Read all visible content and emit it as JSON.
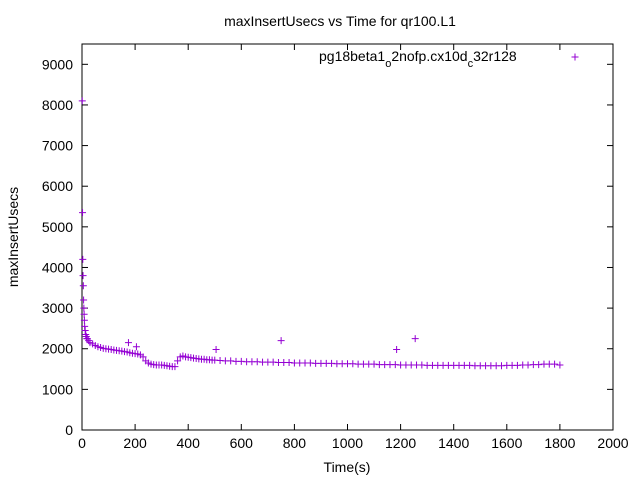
{
  "chart_data": {
    "type": "scatter",
    "title": "maxInsertUsecs vs Time for qr100.L1",
    "xlabel": "Time(s)",
    "ylabel": "maxInsertUsecs",
    "xlim": [
      0,
      2000
    ],
    "ylim": [
      0,
      9500
    ],
    "xticks": [
      "0",
      "200",
      "400",
      "600",
      "800",
      "1000",
      "1200",
      "1400",
      "1600",
      "1800",
      "2000"
    ],
    "yticks": [
      "0",
      "1000",
      "2000",
      "3000",
      "4000",
      "5000",
      "6000",
      "7000",
      "8000",
      "9000"
    ],
    "grid": false,
    "legend_position": "top-right",
    "marker": "+",
    "series": [
      {
        "name_parts": [
          "pg18beta1",
          "o",
          "2nofp.cx10d",
          "c",
          "32r128"
        ],
        "color": "#9400d3",
        "points": [
          [
            1,
            8100
          ],
          [
            2,
            5350
          ],
          [
            3,
            4200
          ],
          [
            4,
            3800
          ],
          [
            5,
            3550
          ],
          [
            6,
            3200
          ],
          [
            7,
            3000
          ],
          [
            8,
            2850
          ],
          [
            9,
            2700
          ],
          [
            10,
            2550
          ],
          [
            12,
            2450
          ],
          [
            14,
            2350
          ],
          [
            16,
            2300
          ],
          [
            18,
            2250
          ],
          [
            20,
            2250
          ],
          [
            25,
            2200
          ],
          [
            30,
            2150
          ],
          [
            40,
            2120
          ],
          [
            50,
            2080
          ],
          [
            60,
            2050
          ],
          [
            70,
            2030
          ],
          [
            80,
            2010
          ],
          [
            90,
            2000
          ],
          [
            100,
            1990
          ],
          [
            110,
            1980
          ],
          [
            120,
            1970
          ],
          [
            130,
            1960
          ],
          [
            140,
            1950
          ],
          [
            150,
            1940
          ],
          [
            160,
            1930
          ],
          [
            170,
            1920
          ],
          [
            175,
            2150
          ],
          [
            180,
            1900
          ],
          [
            190,
            1890
          ],
          [
            200,
            1880
          ],
          [
            205,
            2050
          ],
          [
            210,
            1870
          ],
          [
            220,
            1850
          ],
          [
            230,
            1800
          ],
          [
            240,
            1700
          ],
          [
            250,
            1650
          ],
          [
            260,
            1620
          ],
          [
            270,
            1610
          ],
          [
            280,
            1600
          ],
          [
            290,
            1600
          ],
          [
            300,
            1600
          ],
          [
            310,
            1590
          ],
          [
            320,
            1580
          ],
          [
            330,
            1570
          ],
          [
            340,
            1560
          ],
          [
            350,
            1560
          ],
          [
            360,
            1700
          ],
          [
            370,
            1800
          ],
          [
            380,
            1820
          ],
          [
            390,
            1800
          ],
          [
            400,
            1790
          ],
          [
            410,
            1780
          ],
          [
            420,
            1770
          ],
          [
            430,
            1760
          ],
          [
            440,
            1750
          ],
          [
            450,
            1740
          ],
          [
            460,
            1740
          ],
          [
            470,
            1730
          ],
          [
            480,
            1730
          ],
          [
            490,
            1720
          ],
          [
            500,
            1720
          ],
          [
            505,
            1980
          ],
          [
            520,
            1710
          ],
          [
            540,
            1700
          ],
          [
            560,
            1700
          ],
          [
            580,
            1690
          ],
          [
            600,
            1690
          ],
          [
            620,
            1680
          ],
          [
            640,
            1680
          ],
          [
            660,
            1680
          ],
          [
            680,
            1670
          ],
          [
            700,
            1670
          ],
          [
            720,
            1670
          ],
          [
            740,
            1660
          ],
          [
            750,
            2200
          ],
          [
            760,
            1660
          ],
          [
            780,
            1660
          ],
          [
            800,
            1650
          ],
          [
            820,
            1650
          ],
          [
            840,
            1650
          ],
          [
            860,
            1650
          ],
          [
            880,
            1640
          ],
          [
            900,
            1640
          ],
          [
            920,
            1640
          ],
          [
            940,
            1640
          ],
          [
            960,
            1630
          ],
          [
            980,
            1630
          ],
          [
            1000,
            1630
          ],
          [
            1020,
            1630
          ],
          [
            1040,
            1620
          ],
          [
            1060,
            1620
          ],
          [
            1080,
            1620
          ],
          [
            1100,
            1620
          ],
          [
            1120,
            1610
          ],
          [
            1140,
            1610
          ],
          [
            1160,
            1610
          ],
          [
            1180,
            1610
          ],
          [
            1185,
            1980
          ],
          [
            1200,
            1600
          ],
          [
            1220,
            1600
          ],
          [
            1240,
            1600
          ],
          [
            1255,
            2250
          ],
          [
            1260,
            1600
          ],
          [
            1280,
            1600
          ],
          [
            1300,
            1590
          ],
          [
            1320,
            1590
          ],
          [
            1340,
            1590
          ],
          [
            1360,
            1590
          ],
          [
            1380,
            1590
          ],
          [
            1400,
            1590
          ],
          [
            1420,
            1590
          ],
          [
            1440,
            1590
          ],
          [
            1460,
            1590
          ],
          [
            1480,
            1580
          ],
          [
            1500,
            1580
          ],
          [
            1520,
            1580
          ],
          [
            1540,
            1580
          ],
          [
            1560,
            1580
          ],
          [
            1580,
            1580
          ],
          [
            1600,
            1590
          ],
          [
            1620,
            1590
          ],
          [
            1640,
            1590
          ],
          [
            1660,
            1600
          ],
          [
            1680,
            1600
          ],
          [
            1700,
            1610
          ],
          [
            1720,
            1610
          ],
          [
            1740,
            1620
          ],
          [
            1760,
            1620
          ],
          [
            1780,
            1620
          ],
          [
            1800,
            1600
          ]
        ]
      }
    ]
  }
}
